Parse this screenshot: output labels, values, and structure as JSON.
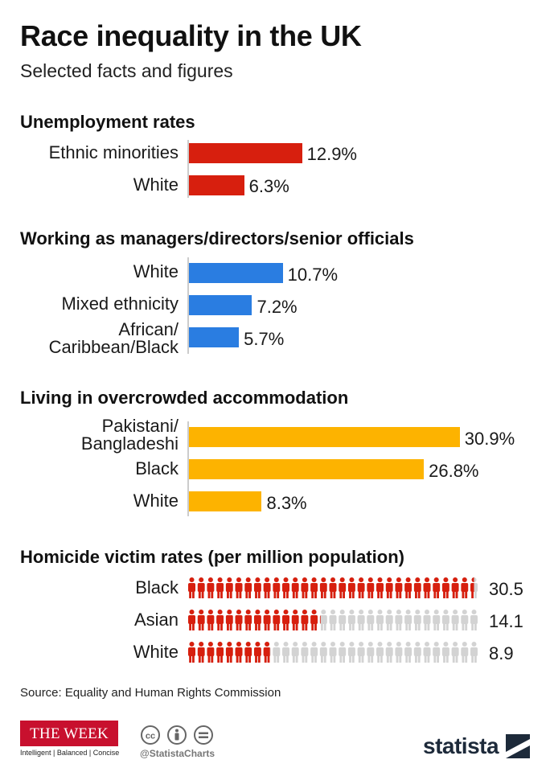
{
  "header": {
    "title": "Race inequality in the UK",
    "subtitle": "Selected facts and figures"
  },
  "chart_data": [
    {
      "type": "bar",
      "orientation": "horizontal",
      "title": "Unemployment rates",
      "categories": [
        "Ethnic minorities",
        "White"
      ],
      "values": [
        12.9,
        6.3
      ],
      "value_labels": [
        "12.9%",
        "6.3%"
      ],
      "color": "#d71f0e"
    },
    {
      "type": "bar",
      "orientation": "horizontal",
      "title": "Working as managers/directors/senior officials",
      "categories": [
        "White",
        "Mixed ethnicity",
        "African/\nCaribbean/Black"
      ],
      "values": [
        10.7,
        7.2,
        5.7
      ],
      "value_labels": [
        "10.7%",
        "7.2%",
        "5.7%"
      ],
      "color": "#2a7de1"
    },
    {
      "type": "bar",
      "orientation": "horizontal",
      "title": "Living in overcrowded accommodation",
      "categories": [
        "Pakistani/\nBangladeshi",
        "Black",
        "White"
      ],
      "values": [
        30.9,
        26.8,
        8.3
      ],
      "value_labels": [
        "30.9%",
        "26.8%",
        "8.3%"
      ],
      "color": "#fdb300"
    },
    {
      "type": "pictogram",
      "title": "Homicide victim rates (per million population)",
      "categories": [
        "Black",
        "Asian",
        "White"
      ],
      "values": [
        30.5,
        14.1,
        8.9
      ],
      "value_labels": [
        "30.5",
        "14.1",
        "8.9"
      ],
      "max_icons": 31,
      "filled_color": "#d71f0e",
      "empty_color": "#d3d3d3"
    }
  ],
  "footer": {
    "source": "Source: Equality and Human Rights Commission",
    "publisher_name": "THE WEEK",
    "publisher_tagline": "Intelligent | Balanced | Concise",
    "handle": "@StatistaCharts",
    "brand": "statista"
  }
}
